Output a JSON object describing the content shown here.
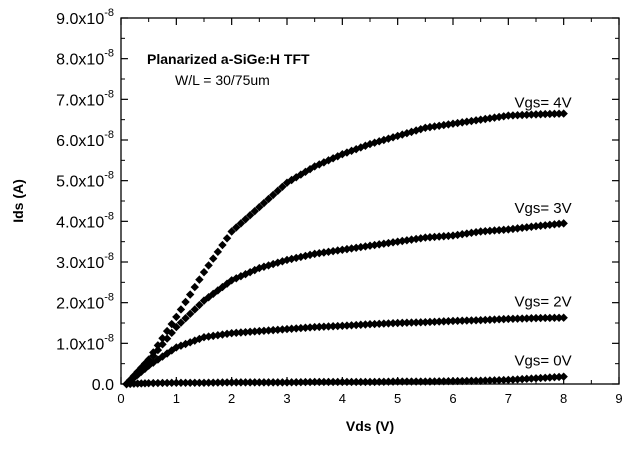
{
  "chart_data": {
    "type": "scatter",
    "title": "",
    "annotations": {
      "line1": "Planarized a-SiGe:H TFT",
      "line2": "W/L = 30/75um"
    },
    "xlabel": "Vds (V)",
    "ylabel": "Ids (A)",
    "xlim": [
      0,
      9
    ],
    "ylim": [
      0,
      9e-08
    ],
    "x_ticks": [
      "0",
      "1",
      "2",
      "3",
      "4",
      "5",
      "6",
      "7",
      "8",
      "9"
    ],
    "y_ticks": [
      {
        "value": 0,
        "mantissa": "0.0",
        "exponent": ""
      },
      {
        "value": 1e-08,
        "mantissa": "1.0x10",
        "exponent": "-8"
      },
      {
        "value": 2e-08,
        "mantissa": "2.0x10",
        "exponent": "-8"
      },
      {
        "value": 3e-08,
        "mantissa": "3.0x10",
        "exponent": "-8"
      },
      {
        "value": 4e-08,
        "mantissa": "4.0x10",
        "exponent": "-8"
      },
      {
        "value": 5e-08,
        "mantissa": "5.0x10",
        "exponent": "-8"
      },
      {
        "value": 6e-08,
        "mantissa": "6.0x10",
        "exponent": "-8"
      },
      {
        "value": 7e-08,
        "mantissa": "7.0x10",
        "exponent": "-8"
      },
      {
        "value": 8e-08,
        "mantissa": "8.0x10",
        "exponent": "-8"
      },
      {
        "value": 9e-08,
        "mantissa": "9.0x10",
        "exponent": "-8"
      }
    ],
    "grid": false,
    "marker": "diamond",
    "marker_color": "#000000",
    "series": [
      {
        "name": "Vgs= 4V",
        "label_anchor_x": 8.0,
        "label_anchor_y": 6.8e-08,
        "x": [
          0.1,
          0.5,
          1.0,
          1.5,
          2.0,
          2.5,
          3.0,
          3.5,
          4.0,
          4.5,
          5.0,
          5.5,
          6.0,
          6.5,
          7.0,
          7.5,
          8.0
        ],
        "y": [
          0,
          6e-09,
          1.65e-08,
          2.75e-08,
          3.75e-08,
          4.35e-08,
          4.95e-08,
          5.35e-08,
          5.65e-08,
          5.9e-08,
          6.1e-08,
          6.3e-08,
          6.4e-08,
          6.5e-08,
          6.6e-08,
          6.63e-08,
          6.65e-08
        ]
      },
      {
        "name": "Vgs= 3V",
        "label_anchor_x": 8.0,
        "label_anchor_y": 4.2e-08,
        "x": [
          0.1,
          0.5,
          1.0,
          1.5,
          2.0,
          2.5,
          3.0,
          3.5,
          4.0,
          4.5,
          5.0,
          5.5,
          6.0,
          6.5,
          7.0,
          7.5,
          8.0
        ],
        "y": [
          0,
          5.5e-09,
          1.4e-08,
          2.05e-08,
          2.55e-08,
          2.85e-08,
          3.05e-08,
          3.2e-08,
          3.3e-08,
          3.4e-08,
          3.5e-08,
          3.6e-08,
          3.65e-08,
          3.75e-08,
          3.8e-08,
          3.88e-08,
          3.95e-08
        ]
      },
      {
        "name": "Vgs= 2V",
        "label_anchor_x": 8.0,
        "label_anchor_y": 1.9e-08,
        "x": [
          0.1,
          0.5,
          1.0,
          1.5,
          2.0,
          2.5,
          3.0,
          3.5,
          4.0,
          4.5,
          5.0,
          5.5,
          6.0,
          6.5,
          7.0,
          7.5,
          8.0
        ],
        "y": [
          0,
          4.5e-09,
          9e-09,
          1.15e-08,
          1.25e-08,
          1.3e-08,
          1.35e-08,
          1.4e-08,
          1.43e-08,
          1.47e-08,
          1.5e-08,
          1.52e-08,
          1.55e-08,
          1.57e-08,
          1.6e-08,
          1.62e-08,
          1.63e-08
        ]
      },
      {
        "name": "Vgs= 0V",
        "label_anchor_x": 8.0,
        "label_anchor_y": 4.5e-09,
        "x": [
          0.1,
          0.5,
          1.0,
          1.5,
          2.0,
          2.5,
          3.0,
          3.5,
          4.0,
          4.5,
          5.0,
          5.5,
          6.0,
          6.5,
          7.0,
          7.5,
          8.0
        ],
        "y": [
          0,
          2e-10,
          3e-10,
          3e-10,
          4e-10,
          4e-10,
          4e-10,
          5e-10,
          5e-10,
          5e-10,
          6e-10,
          6e-10,
          7e-10,
          8e-10,
          1e-09,
          1.4e-09,
          1.8e-09
        ]
      }
    ]
  }
}
